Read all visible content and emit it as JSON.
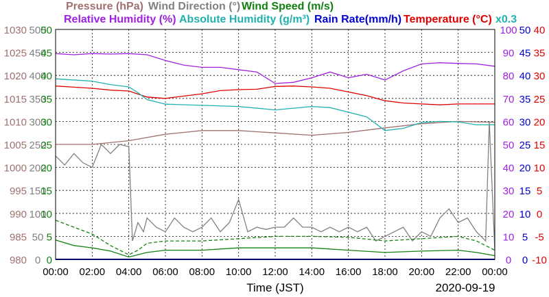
{
  "chart_data": {
    "type": "line",
    "legend": {
      "row1": [
        {
          "text": "Pressure (hPa)",
          "color": "#a07070"
        },
        {
          "text": "Wind Direction (°)",
          "color": "#808080"
        },
        {
          "text": "Wind Speed (m/s)",
          "color": "#108010"
        }
      ],
      "row2": [
        {
          "text": "Relative Humidity (%)",
          "color": "#a020e0"
        },
        {
          "text": "Absolute Humidity (g/m³)",
          "color": "#20b0b0"
        },
        {
          "text": "Rain Rate(mm/h)",
          "color": "#0000d0"
        },
        {
          "text": "Temperature (°C)",
          "color": "#e00000"
        },
        {
          "text": "x0.3",
          "color": "#20b0b0"
        }
      ]
    },
    "xlabel": "Time (JST)",
    "date": "2020-09-19",
    "x_ticks": [
      "00:00",
      "02:00",
      "04:00",
      "06:00",
      "08:00",
      "10:00",
      "12:00",
      "14:00",
      "16:00",
      "18:00",
      "20:00",
      "22:00",
      "00:00"
    ],
    "xlim_hours": [
      0,
      24
    ],
    "axes": {
      "pressure": {
        "ticks": [
          "1030",
          "1025",
          "1020",
          "1015",
          "1010",
          "1005",
          "1000",
          "995",
          "990",
          "985",
          "980"
        ],
        "lim": [
          980,
          1030
        ],
        "color": "#a07070"
      },
      "wind_direction": {
        "ticks": [
          "500",
          "450",
          "400",
          "350",
          "300",
          "250",
          "200",
          "150",
          "100",
          "50",
          "0"
        ],
        "lim": [
          0,
          500
        ],
        "color": "#808080"
      },
      "wind_speed": {
        "ticks": [
          "50",
          "45",
          "40",
          "35",
          "30",
          "25",
          "20",
          "15",
          "10",
          "5",
          "0"
        ],
        "lim": [
          0,
          50
        ],
        "color": "#108010"
      },
      "relative_humidity": {
        "ticks": [
          "100",
          "90",
          "80",
          "70",
          "60",
          "50",
          "40",
          "30",
          "20",
          "10",
          "0"
        ],
        "lim": [
          0,
          100
        ],
        "color": "#a020e0"
      },
      "rain_rate": {
        "ticks": [
          "50",
          "45",
          "40",
          "35",
          "30",
          "25",
          "20",
          "15",
          "10",
          "5",
          "0"
        ],
        "lim": [
          0,
          50
        ],
        "color": "#0000d0"
      },
      "temperature": {
        "ticks": [
          "40",
          "35",
          "30",
          "25",
          "20",
          "15",
          "10",
          "5",
          "0",
          "-5",
          "-10"
        ],
        "lim": [
          -10,
          40
        ],
        "color": "#e00000"
      }
    },
    "grid": true,
    "series": [
      {
        "key": "pressure",
        "axis": "pressure",
        "color": "#a07070",
        "points": [
          [
            0,
            1005.0
          ],
          [
            2,
            1005.0
          ],
          [
            4,
            1005.8
          ],
          [
            6,
            1007.2
          ],
          [
            8,
            1008.0
          ],
          [
            10,
            1008.0
          ],
          [
            12,
            1007.5
          ],
          [
            14,
            1007.0
          ],
          [
            16,
            1007.6
          ],
          [
            18,
            1008.6
          ],
          [
            20,
            1009.5
          ],
          [
            22,
            1010.0
          ],
          [
            24,
            1009.8
          ]
        ]
      },
      {
        "key": "temperature",
        "axis": "temperature",
        "color": "#e00000",
        "points": [
          [
            0,
            27.7
          ],
          [
            2,
            27.2
          ],
          [
            3,
            26.8
          ],
          [
            4,
            26.6
          ],
          [
            5,
            25.3
          ],
          [
            6,
            25.0
          ],
          [
            7,
            25.5
          ],
          [
            8,
            26.0
          ],
          [
            9,
            26.7
          ],
          [
            10,
            26.9
          ],
          [
            11,
            27.0
          ],
          [
            12,
            27.6
          ],
          [
            13,
            27.7
          ],
          [
            14,
            27.5
          ],
          [
            15,
            27.2
          ],
          [
            16,
            26.4
          ],
          [
            17,
            25.6
          ],
          [
            18,
            24.5
          ],
          [
            19,
            24.0
          ],
          [
            20,
            23.8
          ],
          [
            21,
            23.6
          ],
          [
            22,
            23.8
          ],
          [
            24,
            23.8
          ]
        ]
      },
      {
        "key": "relative_humidity",
        "axis": "relative_humidity",
        "color": "#a020e0",
        "points": [
          [
            0,
            89.5
          ],
          [
            1,
            89.0
          ],
          [
            2,
            89.5
          ],
          [
            3,
            89.3
          ],
          [
            4,
            89.5
          ],
          [
            5,
            89.0
          ],
          [
            6,
            86.5
          ],
          [
            7,
            84.5
          ],
          [
            8,
            83.5
          ],
          [
            9,
            83.5
          ],
          [
            10,
            82.5
          ],
          [
            11,
            81.5
          ],
          [
            12,
            76.5
          ],
          [
            13,
            77.0
          ],
          [
            14,
            79.0
          ],
          [
            15,
            81.5
          ],
          [
            16,
            79.0
          ],
          [
            17,
            80.5
          ],
          [
            18,
            78.0
          ],
          [
            19,
            82.0
          ],
          [
            20,
            85.0
          ],
          [
            21,
            85.5
          ],
          [
            22,
            85.2
          ],
          [
            23,
            85.0
          ],
          [
            24,
            84.0
          ]
        ]
      },
      {
        "key": "absolute_humidity",
        "axis": "relative_humidity",
        "color": "#20b0b0",
        "points": [
          [
            0,
            78.5
          ],
          [
            2,
            77.5
          ],
          [
            3,
            76.0
          ],
          [
            4,
            75.0
          ],
          [
            4.5,
            72.5
          ],
          [
            5,
            69.5
          ],
          [
            6,
            67.5
          ],
          [
            8,
            67.0
          ],
          [
            10,
            66.5
          ],
          [
            12,
            65.0
          ],
          [
            14,
            66.5
          ],
          [
            15,
            66.0
          ],
          [
            16,
            64.0
          ],
          [
            17,
            62.0
          ],
          [
            18,
            56.0
          ],
          [
            19,
            57.0
          ],
          [
            20,
            59.5
          ],
          [
            21,
            60.0
          ],
          [
            22,
            59.8
          ],
          [
            23,
            58.5
          ],
          [
            24,
            58.5
          ]
        ]
      },
      {
        "key": "wind_direction",
        "axis": "wind_direction",
        "color": "#808080",
        "points": [
          [
            0,
            225
          ],
          [
            0.5,
            205
          ],
          [
            1,
            230
          ],
          [
            1.5,
            210
          ],
          [
            2,
            200
          ],
          [
            2.5,
            250
          ],
          [
            3,
            230
          ],
          [
            3.5,
            250
          ],
          [
            4,
            245
          ],
          [
            4.2,
            40
          ],
          [
            4.5,
            80
          ],
          [
            4.8,
            60
          ],
          [
            5,
            90
          ],
          [
            5.5,
            70
          ],
          [
            6,
            60
          ],
          [
            6.5,
            90
          ],
          [
            7,
            70
          ],
          [
            7.5,
            60
          ],
          [
            8,
            70
          ],
          [
            8.5,
            90
          ],
          [
            9,
            60
          ],
          [
            9.5,
            80
          ],
          [
            10,
            130
          ],
          [
            10.5,
            60
          ],
          [
            11,
            70
          ],
          [
            11.5,
            65
          ],
          [
            12,
            70
          ],
          [
            12.5,
            70
          ],
          [
            13,
            90
          ],
          [
            13.5,
            70
          ],
          [
            14,
            70
          ],
          [
            14.5,
            60
          ],
          [
            15,
            70
          ],
          [
            15.5,
            60
          ],
          [
            16,
            70
          ],
          [
            16.5,
            60
          ],
          [
            17,
            70
          ],
          [
            17.5,
            40
          ],
          [
            18,
            50
          ],
          [
            18.5,
            60
          ],
          [
            19,
            70
          ],
          [
            19.5,
            40
          ],
          [
            20,
            60
          ],
          [
            20.5,
            50
          ],
          [
            21,
            90
          ],
          [
            21.5,
            110
          ],
          [
            22,
            80
          ],
          [
            22.5,
            90
          ],
          [
            23,
            60
          ],
          [
            23.5,
            40
          ],
          [
            23.7,
            300
          ],
          [
            24,
            20
          ]
        ]
      },
      {
        "key": "wind_speed_max",
        "axis": "wind_speed",
        "color": "#108010",
        "dashed": true,
        "points": [
          [
            0,
            8.5
          ],
          [
            1,
            7.0
          ],
          [
            2,
            5.5
          ],
          [
            3,
            3.0
          ],
          [
            4,
            1.0
          ],
          [
            4.5,
            2.0
          ],
          [
            5,
            3.5
          ],
          [
            6,
            4.0
          ],
          [
            8,
            4.0
          ],
          [
            10,
            4.5
          ],
          [
            12,
            5.0
          ],
          [
            14,
            5.0
          ],
          [
            16,
            4.8
          ],
          [
            18,
            4.0
          ],
          [
            20,
            4.5
          ],
          [
            22,
            5.0
          ],
          [
            23,
            4.0
          ],
          [
            24,
            2.0
          ]
        ]
      },
      {
        "key": "wind_speed_avg",
        "axis": "wind_speed",
        "color": "#108010",
        "points": [
          [
            0,
            4.2
          ],
          [
            1,
            3.0
          ],
          [
            2,
            2.5
          ],
          [
            3,
            1.8
          ],
          [
            4,
            0.5
          ],
          [
            4.5,
            1.0
          ],
          [
            5,
            1.5
          ],
          [
            6,
            2.0
          ],
          [
            8,
            2.0
          ],
          [
            10,
            2.5
          ],
          [
            12,
            2.5
          ],
          [
            14,
            2.5
          ],
          [
            16,
            2.0
          ],
          [
            18,
            1.5
          ],
          [
            20,
            1.8
          ],
          [
            22,
            2.0
          ],
          [
            23,
            1.5
          ],
          [
            24,
            0.8
          ]
        ]
      },
      {
        "key": "rain_rate",
        "axis": "rain_rate",
        "color": "#0000d0",
        "points": [
          [
            0,
            0
          ],
          [
            24,
            0
          ]
        ]
      }
    ]
  }
}
